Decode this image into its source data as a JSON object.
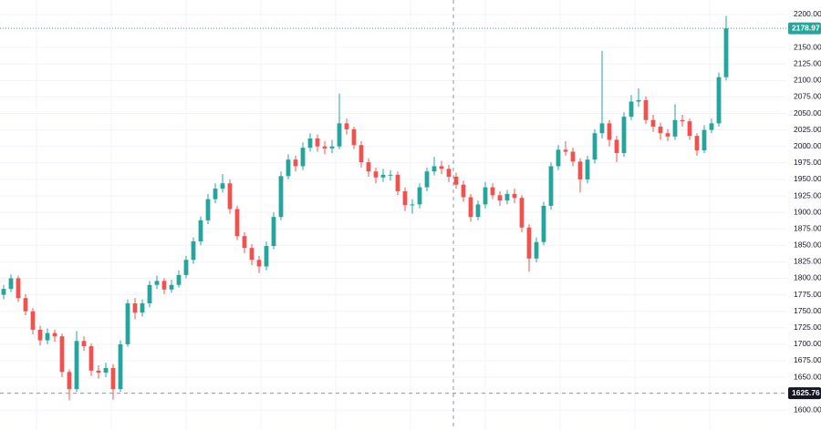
{
  "chart_data": {
    "type": "candlestick",
    "up_color": "#26a69a",
    "down_color": "#ef5350",
    "open": [
      1775,
      1784,
      1800,
      1770,
      1750,
      1722,
      1706,
      1717,
      1712,
      1658,
      1632,
      1705,
      1697,
      1660,
      1657,
      1664,
      1632,
      1700,
      1762,
      1748,
      1762,
      1790,
      1796,
      1783,
      1790,
      1805,
      1828,
      1856,
      1888,
      1920,
      1936,
      1944,
      1905,
      1864,
      1846,
      1828,
      1818,
      1849,
      1893,
      1955,
      1980,
      1970,
      1998,
      2012,
      2000,
      1997,
      2000,
      2035,
      2026,
      2002,
      1976,
      1962,
      1953,
      1957,
      1957,
      1932,
      1911,
      1912,
      1938,
      1962,
      1970,
      1966,
      1954,
      1942,
      1923,
      1893,
      1912,
      1938,
      1926,
      1918,
      1928,
      1922,
      1877,
      1830,
      1855,
      1910,
      1970,
      1995,
      1992,
      1977,
      1950,
      1980,
      2020,
      2035,
      2010,
      1990,
      2045,
      2068,
      2070,
      2040,
      2030,
      2020,
      2015,
      2040,
      2038,
      2016,
      1994,
      2025,
      2035,
      2105
    ],
    "high": [
      1790,
      1806,
      1804,
      1776,
      1755,
      1728,
      1724,
      1722,
      1716,
      1662,
      1720,
      1712,
      1701,
      1668,
      1672,
      1670,
      1706,
      1768,
      1770,
      1768,
      1796,
      1804,
      1800,
      1798,
      1812,
      1834,
      1862,
      1894,
      1928,
      1944,
      1958,
      1950,
      1910,
      1870,
      1852,
      1834,
      1856,
      1900,
      1962,
      1988,
      1986,
      2006,
      2020,
      2018,
      2008,
      2010,
      2080,
      2042,
      2030,
      2008,
      1982,
      1968,
      1966,
      1964,
      1962,
      1938,
      1920,
      1944,
      1968,
      1984,
      1978,
      1972,
      1960,
      1948,
      1928,
      1918,
      1946,
      1944,
      1932,
      1934,
      1936,
      1926,
      1882,
      1862,
      1916,
      1976,
      2002,
      2008,
      1998,
      1982,
      1986,
      2026,
      2145,
      2040,
      2016,
      2052,
      2078,
      2088,
      2076,
      2048,
      2036,
      2026,
      2064,
      2048,
      2042,
      2020,
      2032,
      2042,
      2112,
      2198
    ],
    "low": [
      1768,
      1779,
      1764,
      1744,
      1715,
      1698,
      1700,
      1704,
      1650,
      1615,
      1628,
      1690,
      1652,
      1648,
      1650,
      1616,
      1628,
      1696,
      1738,
      1742,
      1756,
      1784,
      1776,
      1778,
      1786,
      1800,
      1822,
      1850,
      1882,
      1914,
      1930,
      1898,
      1858,
      1838,
      1820,
      1808,
      1812,
      1844,
      1888,
      1950,
      1962,
      1964,
      1992,
      1992,
      1988,
      1990,
      1996,
      2018,
      1996,
      1968,
      1954,
      1944,
      1946,
      1948,
      1926,
      1902,
      1898,
      1906,
      1932,
      1956,
      1958,
      1946,
      1936,
      1916,
      1886,
      1888,
      1906,
      1920,
      1910,
      1912,
      1914,
      1870,
      1810,
      1824,
      1850,
      1904,
      1964,
      1986,
      1970,
      1930,
      1944,
      1974,
      2012,
      2000,
      1976,
      1984,
      2040,
      2060,
      2034,
      2022,
      2010,
      2008,
      2010,
      2030,
      2010,
      1986,
      1990,
      2020,
      2030,
      2100
    ],
    "close": [
      1784,
      1800,
      1770,
      1750,
      1722,
      1706,
      1717,
      1712,
      1658,
      1632,
      1705,
      1697,
      1660,
      1657,
      1664,
      1632,
      1700,
      1762,
      1748,
      1762,
      1790,
      1796,
      1783,
      1790,
      1805,
      1828,
      1856,
      1888,
      1920,
      1936,
      1944,
      1905,
      1864,
      1846,
      1828,
      1818,
      1849,
      1893,
      1955,
      1980,
      1970,
      1998,
      2012,
      2000,
      1997,
      2000,
      2035,
      2026,
      2002,
      1976,
      1962,
      1953,
      1957,
      1957,
      1932,
      1911,
      1912,
      1938,
      1962,
      1970,
      1966,
      1954,
      1942,
      1923,
      1893,
      1912,
      1938,
      1926,
      1918,
      1928,
      1922,
      1877,
      1830,
      1855,
      1910,
      1970,
      1995,
      1992,
      1977,
      1950,
      1980,
      2020,
      2035,
      2010,
      1990,
      2045,
      2068,
      2070,
      2040,
      2030,
      2020,
      2015,
      2040,
      2038,
      2016,
      1994,
      2025,
      2035,
      2105,
      2178.97
    ],
    "ylim": [
      1570,
      2222
    ],
    "yticks": [
      {
        "value": 1600,
        "label": "1600.00"
      },
      {
        "value": 1625,
        "label": "1625.00"
      },
      {
        "value": 1650,
        "label": "1650.00"
      },
      {
        "value": 1675,
        "label": "1675.00"
      },
      {
        "value": 1700,
        "label": "1700.00"
      },
      {
        "value": 1725,
        "label": "1725.00"
      },
      {
        "value": 1750,
        "label": "1750.00"
      },
      {
        "value": 1775,
        "label": "1775.00"
      },
      {
        "value": 1800,
        "label": "1800.00"
      },
      {
        "value": 1825,
        "label": "1825.00"
      },
      {
        "value": 1850,
        "label": "1850.00"
      },
      {
        "value": 1875,
        "label": "1875.00"
      },
      {
        "value": 1900,
        "label": "1900.00"
      },
      {
        "value": 1925,
        "label": "1925.00"
      },
      {
        "value": 1950,
        "label": "1950.00"
      },
      {
        "value": 1975,
        "label": "1975.00"
      },
      {
        "value": 2000,
        "label": "2000.00"
      },
      {
        "value": 2025,
        "label": "2025.00"
      },
      {
        "value": 2050,
        "label": "2050.00"
      },
      {
        "value": 2075,
        "label": "2075.00"
      },
      {
        "value": 2100,
        "label": "2100.00"
      },
      {
        "value": 2125,
        "label": "2125.00"
      },
      {
        "value": 2150,
        "label": "2150.00"
      },
      {
        "value": 2175,
        "label": "2175.00"
      },
      {
        "value": 2200,
        "label": "2200.00"
      }
    ],
    "grid": true,
    "last_price": 2178.97,
    "crosshair_price": 1625.76
  }
}
